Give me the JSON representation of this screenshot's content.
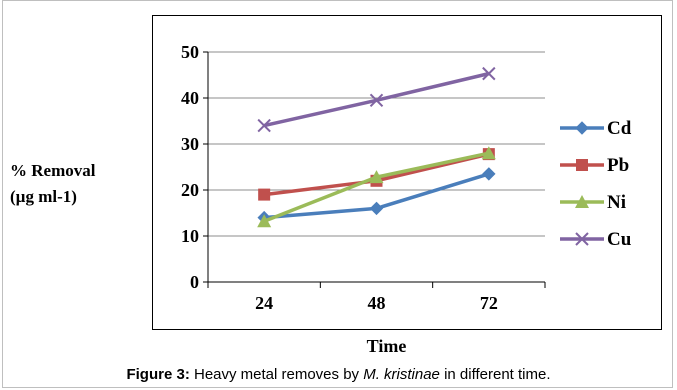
{
  "chart_data": {
    "type": "line",
    "categories": [
      "24",
      "48",
      "72"
    ],
    "xlabel": "Time",
    "ylabel_line1": "% Removal",
    "ylabel_line2": "(µg ml-1)",
    "ylim": [
      0,
      50
    ],
    "yticks": [
      "0",
      "10",
      "20",
      "30",
      "40",
      "50"
    ],
    "grid": true,
    "legend_placement": "right",
    "series": [
      {
        "name": "Cd",
        "values": [
          14,
          16,
          23.5
        ],
        "color": "#4a7ebb",
        "marker": "diamond"
      },
      {
        "name": "Pb",
        "values": [
          19,
          22,
          27.8
        ],
        "color": "#c0504d",
        "marker": "square"
      },
      {
        "name": "Ni",
        "values": [
          13.2,
          22.8,
          28
        ],
        "color": "#9bbb59",
        "marker": "triangle"
      },
      {
        "name": "Cu",
        "values": [
          34,
          39.5,
          45.3
        ],
        "color": "#8064a2",
        "marker": "x"
      }
    ]
  },
  "caption": {
    "label": "Figure 3:",
    "text_before": " Heavy metal removes by ",
    "species": "M. kristinae",
    "text_after": " in different time."
  }
}
